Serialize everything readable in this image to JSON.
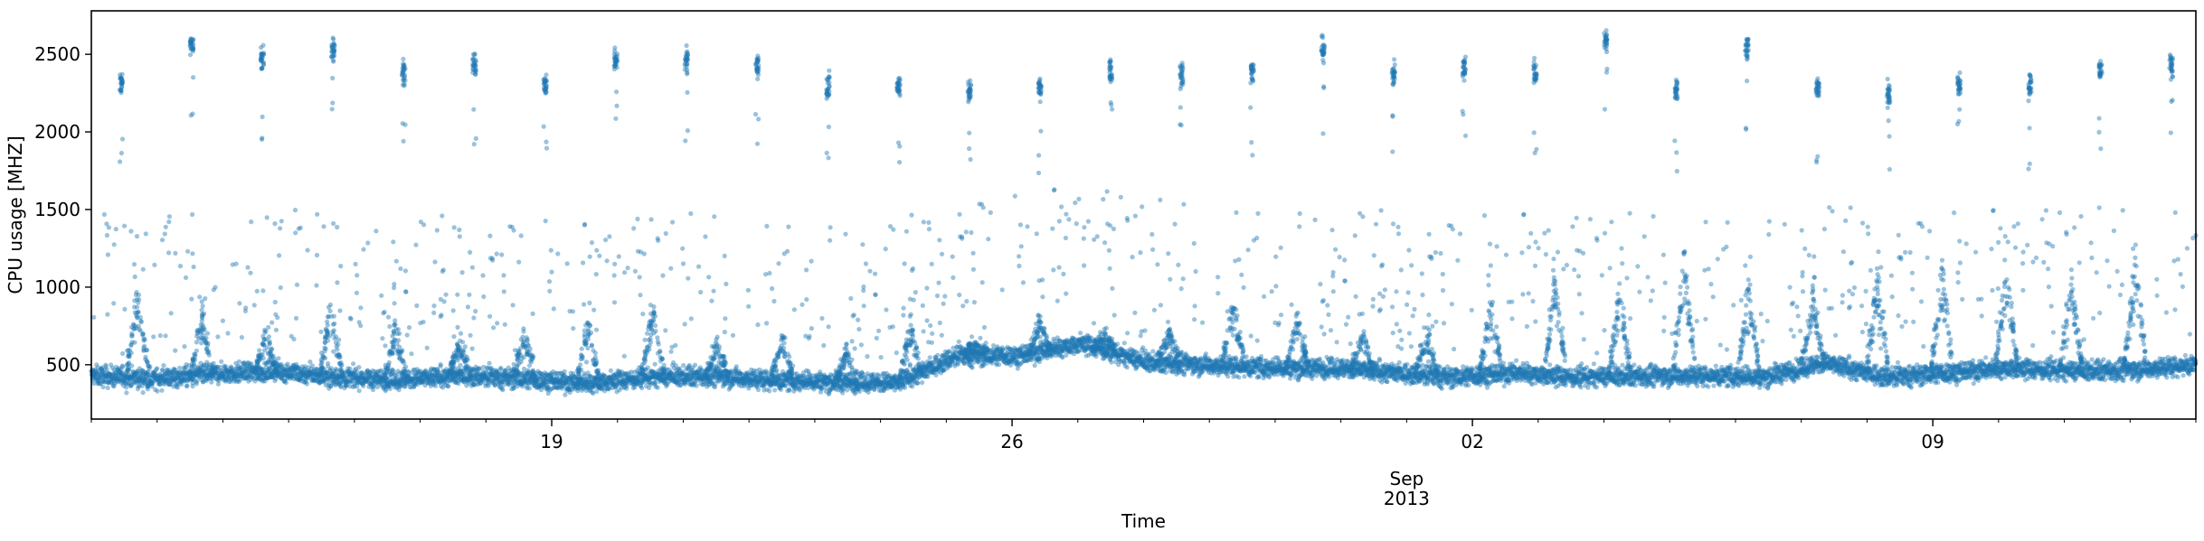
{
  "chart_data": {
    "type": "scatter",
    "title": "",
    "xlabel": "Time",
    "ylabel": "CPU usage [MHZ]",
    "x_start": "2013-08-12 00:00",
    "x_end": "2013-09-13 00:00",
    "ylim": [
      150,
      2780
    ],
    "y_ticks": [
      500,
      1000,
      1500,
      2000,
      2500
    ],
    "x_major_ticks": [
      {
        "day": 7,
        "label": "19"
      },
      {
        "day": 14,
        "label": "26"
      },
      {
        "day": 21,
        "label": "02"
      },
      {
        "day": 28,
        "label": "09"
      }
    ],
    "x_minor_ticks_every_days": 1,
    "x_sublabels": {
      "month": "Sep",
      "year": "2013",
      "at_day": 20
    },
    "grid": false,
    "marker_color": "#1f77b4",
    "marker_alpha": 0.45,
    "series": [
      {
        "name": "CPU usage",
        "sample_interval_minutes": 5,
        "baseline_mhz": [
          430,
          410,
          440,
          460,
          420,
          400,
          430,
          410,
          380,
          420,
          430,
          400,
          390,
          380,
          560,
          560,
          640,
          520,
          500,
          480,
          480,
          450,
          420,
          450,
          420,
          430,
          430,
          420,
          510,
          420,
          450,
          480,
          460,
          470,
          500
        ],
        "daily_spike_levels_mhz": [
          2320,
          2560,
          2480,
          2540,
          2380,
          2430,
          2300,
          2460,
          2470,
          2420,
          2290,
          2300,
          2260,
          2280,
          2400,
          2380,
          2380,
          2530,
          2370,
          2420,
          2380,
          2590,
          2270,
          2550,
          2290,
          2250,
          2300,
          2290,
          2400,
          2430
        ],
        "activity_burst_peak_mhz": [
          1000,
          850,
          700,
          900,
          780,
          650,
          720,
          800,
          900,
          650,
          700,
          600,
          750,
          650,
          800,
          700,
          750,
          900,
          800,
          700,
          750,
          900,
          1100,
          1000,
          1250,
          1050,
          950,
          1100,
          1150,
          1150,
          1050,
          1200
        ]
      }
    ]
  }
}
